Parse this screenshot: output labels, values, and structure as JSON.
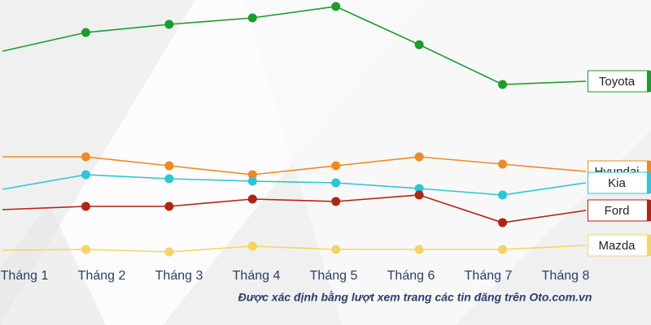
{
  "chart_data": {
    "type": "line",
    "categories": [
      "Tháng 1",
      "Tháng 2",
      "Tháng 3",
      "Tháng 4",
      "Tháng 5",
      "Tháng 6",
      "Tháng 7",
      "Tháng 8"
    ],
    "series": [
      {
        "name": "Toyota",
        "color": "#1a9e2a",
        "values": [
          337,
          360,
          370,
          378,
          392,
          345,
          296,
          300
        ]
      },
      {
        "name": "Hyundai",
        "color": "#ef8a1e",
        "values": [
          207,
          207,
          196,
          185,
          196,
          207,
          198,
          189
        ]
      },
      {
        "name": "Kia",
        "color": "#2cc6d6",
        "values": [
          167,
          185,
          180,
          177,
          175,
          168,
          160,
          175
        ]
      },
      {
        "name": "Ford",
        "color": "#b5220f",
        "values": [
          142,
          146,
          146,
          155,
          152,
          160,
          126,
          141
        ]
      },
      {
        "name": "Mazda",
        "color": "#f5d560",
        "values": [
          92,
          93,
          90,
          97,
          93,
          93,
          93,
          98
        ]
      }
    ],
    "ylim": [
      0,
      400
    ],
    "note": "Được xác định bằng lượt xem trang các tin đăng trên Oto.com.vn"
  }
}
